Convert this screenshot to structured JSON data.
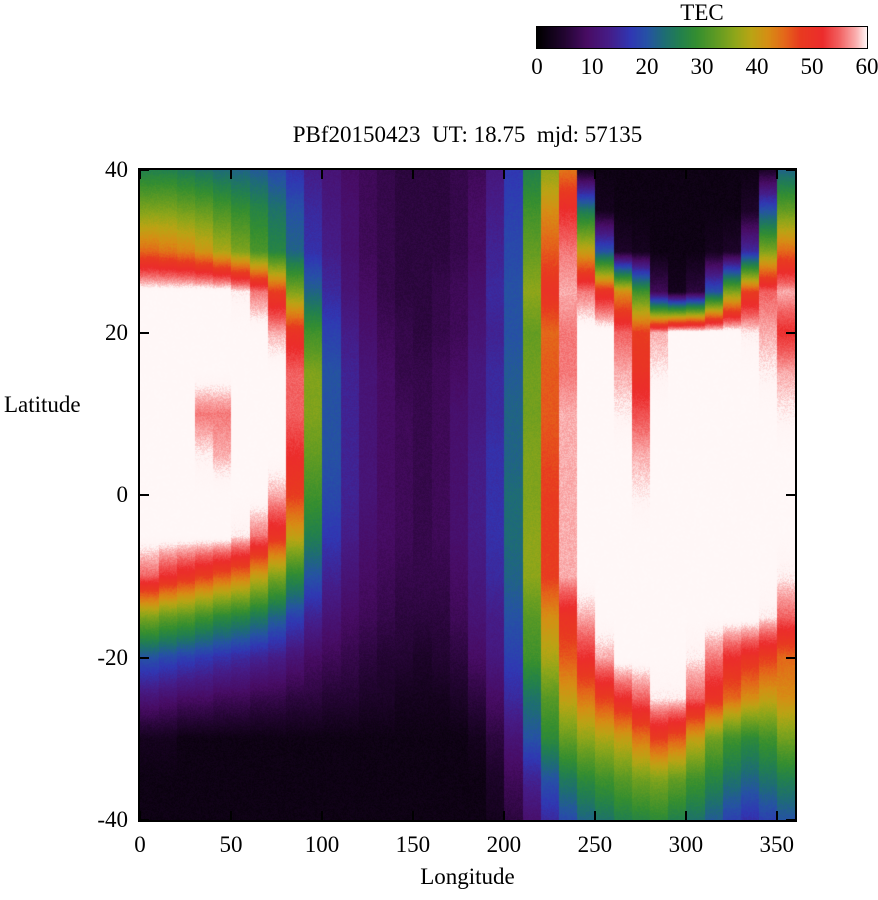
{
  "chart_data": {
    "type": "heatmap",
    "title": "PBf20150423  UT: 18.75  mjd: 57135",
    "xlabel": "Longitude",
    "ylabel": "Latitude",
    "colorbar_label": "TEC",
    "colorbar_ticks": [
      0,
      10,
      20,
      30,
      40,
      50,
      60
    ],
    "value_range": [
      0,
      60
    ],
    "xlim": [
      0,
      360
    ],
    "ylim": [
      -40,
      40
    ],
    "x_ticks": [
      0,
      50,
      100,
      150,
      200,
      250,
      300,
      350
    ],
    "y_ticks": [
      40,
      20,
      0,
      -20,
      -40
    ],
    "grid": false,
    "lon_centers": [
      0,
      10,
      20,
      30,
      40,
      50,
      60,
      70,
      80,
      90,
      100,
      110,
      120,
      130,
      140,
      150,
      160,
      170,
      180,
      190,
      200,
      210,
      220,
      230,
      240,
      250,
      260,
      270,
      280,
      290,
      300,
      310,
      320,
      330,
      340,
      350
    ],
    "lat_centers": [
      40,
      35,
      30,
      25,
      20,
      15,
      10,
      5,
      0,
      -5,
      -10,
      -15,
      -20,
      -25,
      -30,
      -35,
      -40
    ],
    "tec_values": [
      [
        26,
        26,
        25,
        24,
        23,
        22,
        21,
        19,
        16,
        13,
        11,
        9,
        8,
        7,
        6,
        6,
        6,
        7,
        8,
        12,
        17,
        26,
        36,
        44,
        3,
        2,
        2,
        2,
        2,
        2,
        2,
        2,
        2,
        2,
        4,
        22
      ],
      [
        35,
        35,
        34,
        33,
        31,
        29,
        27,
        24,
        20,
        15,
        12,
        10,
        8,
        7,
        6,
        6,
        6,
        7,
        9,
        13,
        18,
        30,
        42,
        52,
        25,
        3,
        2,
        2,
        2,
        2,
        2,
        2,
        2,
        4,
        20,
        33
      ],
      [
        45,
        44,
        43,
        41,
        38,
        35,
        31,
        27,
        22,
        16,
        13,
        10,
        8,
        7,
        6,
        6,
        6,
        7,
        9,
        14,
        19,
        33,
        46,
        56,
        40,
        20,
        4,
        3,
        2,
        2,
        2,
        3,
        4,
        15,
        35,
        45
      ],
      [
        62,
        62,
        62,
        62,
        62,
        60,
        56,
        48,
        35,
        22,
        15,
        11,
        9,
        7,
        6,
        6,
        7,
        8,
        10,
        15,
        20,
        36,
        50,
        58,
        56,
        50,
        42,
        30,
        8,
        3,
        6,
        20,
        35,
        48,
        55,
        58
      ],
      [
        62,
        62,
        62,
        62,
        62,
        62,
        62,
        58,
        50,
        30,
        18,
        13,
        10,
        8,
        7,
        6,
        7,
        8,
        11,
        14,
        20,
        33,
        45,
        56,
        62,
        62,
        55,
        48,
        58,
        62,
        62,
        62,
        62,
        60,
        58,
        52
      ],
      [
        62,
        62,
        62,
        62,
        62,
        62,
        62,
        62,
        55,
        35,
        20,
        14,
        11,
        9,
        7,
        7,
        8,
        9,
        12,
        15,
        21,
        34,
        46,
        56,
        62,
        62,
        58,
        50,
        60,
        62,
        62,
        62,
        62,
        62,
        60,
        58
      ],
      [
        62,
        62,
        62,
        56,
        56,
        62,
        62,
        62,
        55,
        35,
        20,
        14,
        11,
        9,
        8,
        7,
        8,
        10,
        12,
        15,
        22,
        34,
        46,
        58,
        62,
        62,
        60,
        54,
        62,
        62,
        62,
        62,
        62,
        62,
        62,
        60
      ],
      [
        62,
        62,
        62,
        60,
        58,
        62,
        62,
        62,
        52,
        33,
        20,
        14,
        11,
        9,
        8,
        7,
        8,
        10,
        13,
        16,
        22,
        35,
        47,
        58,
        62,
        62,
        62,
        58,
        62,
        62,
        62,
        62,
        62,
        62,
        62,
        62
      ],
      [
        62,
        62,
        62,
        62,
        62,
        62,
        62,
        58,
        48,
        30,
        19,
        14,
        11,
        9,
        8,
        7,
        8,
        10,
        13,
        16,
        23,
        35,
        48,
        58,
        62,
        62,
        62,
        60,
        62,
        62,
        62,
        62,
        62,
        62,
        62,
        62
      ],
      [
        62,
        62,
        62,
        62,
        62,
        60,
        56,
        50,
        40,
        26,
        17,
        13,
        10,
        9,
        8,
        7,
        8,
        10,
        13,
        16,
        23,
        36,
        48,
        58,
        62,
        62,
        62,
        62,
        62,
        62,
        62,
        62,
        62,
        62,
        62,
        62
      ],
      [
        55,
        52,
        50,
        48,
        46,
        44,
        40,
        35,
        28,
        20,
        14,
        11,
        9,
        8,
        7,
        7,
        7,
        9,
        12,
        15,
        22,
        36,
        48,
        58,
        62,
        62,
        62,
        62,
        62,
        62,
        62,
        62,
        62,
        62,
        62,
        60
      ],
      [
        35,
        33,
        32,
        30,
        28,
        27,
        25,
        22,
        18,
        14,
        11,
        9,
        8,
        7,
        6,
        6,
        6,
        8,
        11,
        13,
        20,
        32,
        42,
        50,
        58,
        62,
        62,
        62,
        62,
        62,
        62,
        62,
        62,
        62,
        60,
        55
      ],
      [
        20,
        19,
        18,
        17,
        16,
        15,
        14,
        13,
        11,
        9,
        8,
        7,
        6,
        5,
        5,
        4,
        5,
        6,
        9,
        12,
        18,
        30,
        38,
        46,
        52,
        58,
        62,
        62,
        62,
        62,
        60,
        56,
        52,
        50,
        48,
        45
      ],
      [
        11,
        10,
        9,
        9,
        8,
        8,
        7,
        7,
        6,
        6,
        5,
        5,
        4,
        4,
        3,
        3,
        3,
        4,
        6,
        9,
        15,
        24,
        32,
        40,
        44,
        48,
        52,
        55,
        60,
        60,
        55,
        50,
        45,
        42,
        40,
        42
      ],
      [
        3,
        3,
        2,
        2,
        2,
        2,
        2,
        2,
        2,
        2,
        2,
        2,
        2,
        2,
        2,
        2,
        2,
        2,
        3,
        6,
        11,
        20,
        28,
        33,
        36,
        38,
        40,
        44,
        48,
        46,
        40,
        34,
        30,
        28,
        30,
        34
      ],
      [
        2,
        2,
        2,
        2,
        2,
        2,
        2,
        2,
        2,
        2,
        2,
        2,
        2,
        2,
        2,
        2,
        2,
        2,
        2,
        4,
        8,
        14,
        20,
        25,
        28,
        30,
        32,
        34,
        35,
        33,
        30,
        27,
        24,
        22,
        24,
        26
      ],
      [
        2,
        2,
        2,
        2,
        2,
        2,
        2,
        2,
        2,
        2,
        2,
        2,
        2,
        2,
        2,
        2,
        2,
        2,
        2,
        3,
        6,
        10,
        15,
        19,
        22,
        24,
        26,
        27,
        28,
        26,
        24,
        21,
        18,
        16,
        18,
        20
      ]
    ],
    "palette_stops": [
      [
        0,
        [
          0,
          0,
          0
        ]
      ],
      [
        5,
        [
          35,
          5,
          50
        ]
      ],
      [
        9,
        [
          72,
          12,
          100
        ]
      ],
      [
        13,
        [
          70,
          28,
          135
        ]
      ],
      [
        17,
        [
          48,
          55,
          180
        ]
      ],
      [
        20,
        [
          38,
          82,
          165
        ]
      ],
      [
        23,
        [
          30,
          108,
          118
        ]
      ],
      [
        26,
        [
          34,
          128,
          78
        ]
      ],
      [
        29,
        [
          52,
          142,
          48
        ]
      ],
      [
        33,
        [
          100,
          156,
          34
        ]
      ],
      [
        36,
        [
          142,
          166,
          26
        ]
      ],
      [
        39,
        [
          186,
          164,
          20
        ]
      ],
      [
        42,
        [
          214,
          142,
          20
        ]
      ],
      [
        45,
        [
          228,
          104,
          26
        ]
      ],
      [
        48,
        [
          232,
          58,
          32
        ]
      ],
      [
        52,
        [
          236,
          44,
          44
        ]
      ],
      [
        55,
        [
          242,
          96,
          96
        ]
      ],
      [
        58,
        [
          250,
          172,
          172
        ]
      ],
      [
        60,
        [
          255,
          244,
          244
        ]
      ],
      [
        62,
        [
          255,
          248,
          248
        ]
      ]
    ]
  }
}
